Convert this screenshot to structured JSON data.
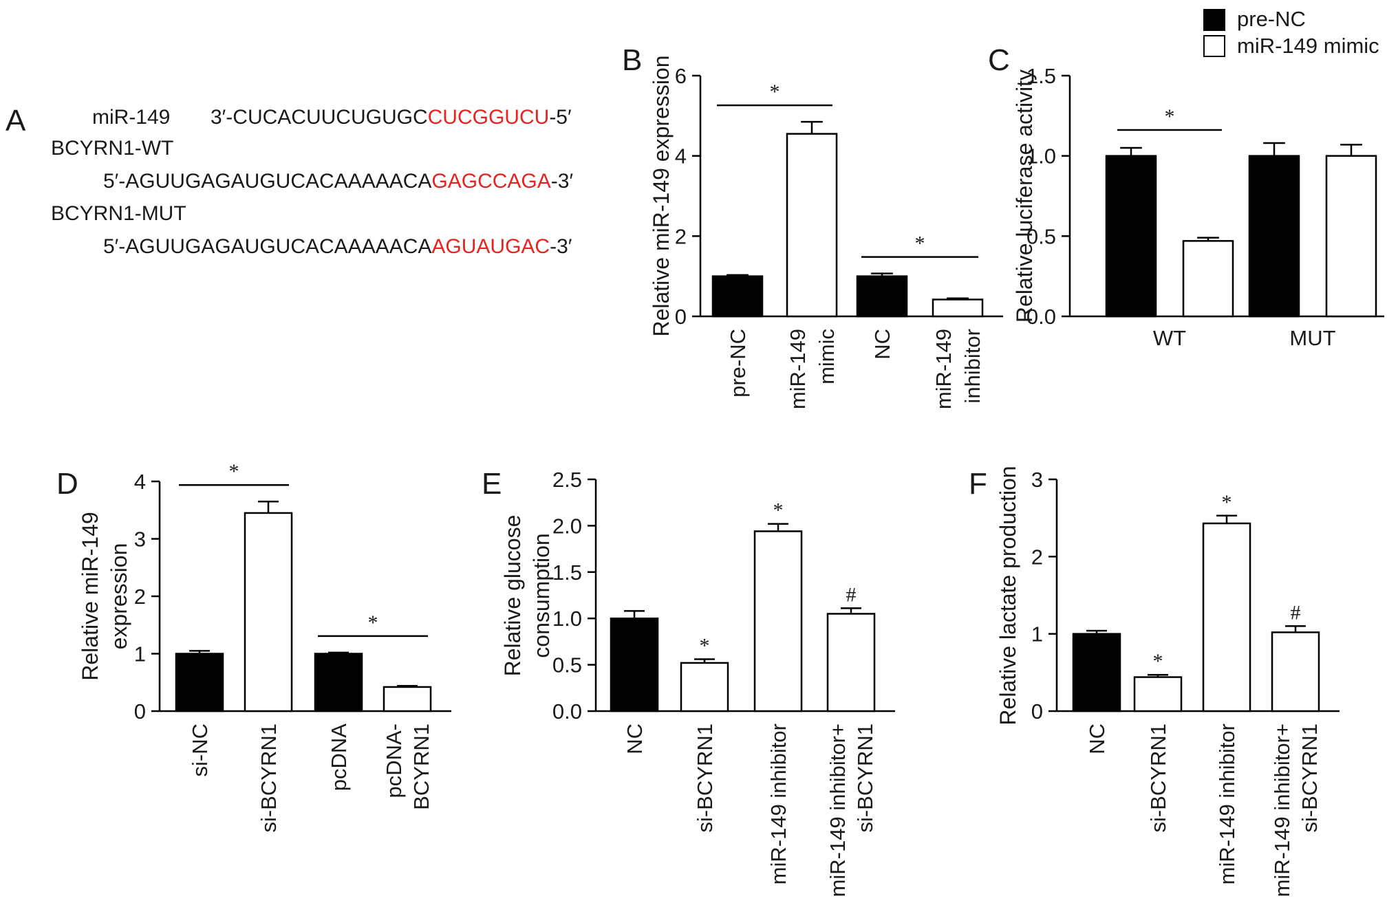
{
  "colors": {
    "black_bar": "#000000",
    "white_bar": "#ffffff",
    "seed": "#e8231f"
  },
  "panelA": {
    "letter": "A",
    "mir_label": "miR-149",
    "mir_prefix": "3′-CUCACUUCUGUGC",
    "mir_seed": "CUCGGUCU",
    "mir_suffix": "-5′",
    "wt_label": "BCYRN1-WT",
    "wt_prefix": "5′-AGUUGAGAUGUCACAAAAACA",
    "wt_seed": "GAGCCAGA",
    "wt_suffix": "-3′",
    "mut_label": "BCYRN1-MUT",
    "mut_prefix": "5′-AGUUGAGAUGUCACAAAAACA",
    "mut_seed": "AGUAUGAC",
    "mut_suffix": "-3′"
  },
  "legend": {
    "items": [
      "pre-NC",
      "miR-149 mimic"
    ]
  },
  "chart_data": [
    {
      "panel": "B",
      "type": "bar",
      "ylabel": "Relative miR-149 expression",
      "ylim": [
        0,
        6
      ],
      "yticks": [
        "0",
        "2",
        "4",
        "6"
      ],
      "categories": [
        [
          "pre-NC"
        ],
        [
          "miR-149",
          "mimic"
        ],
        [
          "NC"
        ],
        [
          "miR-149",
          "inhibitor"
        ]
      ],
      "values": [
        1.0,
        4.55,
        1.0,
        0.42
      ],
      "errors": [
        0.03,
        0.3,
        0.07,
        0.03
      ],
      "fills": [
        "black",
        "white",
        "black",
        "white"
      ],
      "significance": [
        {
          "from": 0,
          "to": 1,
          "label": "*"
        },
        {
          "from": 2,
          "to": 3,
          "label": "*"
        }
      ]
    },
    {
      "panel": "C",
      "type": "bar",
      "ylabel": "Relative luciferase activity",
      "ylim": [
        0,
        1.5
      ],
      "yticks": [
        "0.0",
        "0.5",
        "1.0",
        "1.5"
      ],
      "groups": [
        "WT",
        "MUT"
      ],
      "series": [
        {
          "name": "pre-NC",
          "values": [
            1.0,
            1.0
          ],
          "errors": [
            0.05,
            0.08
          ]
        },
        {
          "name": "miR-149 mimic",
          "values": [
            0.47,
            1.0
          ],
          "errors": [
            0.02,
            0.07
          ]
        }
      ],
      "significance": [
        {
          "group": 0,
          "label": "*"
        }
      ]
    },
    {
      "panel": "D",
      "type": "bar",
      "ylabel": [
        "Relative miR-149",
        "expression"
      ],
      "ylim": [
        0,
        4
      ],
      "yticks": [
        "0",
        "1",
        "2",
        "3",
        "4"
      ],
      "categories": [
        [
          "si-NC"
        ],
        [
          "si-BCYRN1"
        ],
        [
          "pcDNA"
        ],
        [
          "pcDNA-",
          "BCYRN1"
        ]
      ],
      "values": [
        1.0,
        3.45,
        1.0,
        0.42
      ],
      "errors": [
        0.05,
        0.2,
        0.02,
        0.02
      ],
      "fills": [
        "black",
        "white",
        "black",
        "white"
      ],
      "significance": [
        {
          "from": 0,
          "to": 1,
          "label": "*"
        },
        {
          "from": 2,
          "to": 3,
          "label": "*"
        }
      ]
    },
    {
      "panel": "E",
      "type": "bar",
      "ylabel": [
        "Relative glucose",
        "consumption"
      ],
      "ylim": [
        0,
        2.5
      ],
      "yticks": [
        "0.0",
        "0.5",
        "1.0",
        "1.5",
        "2.0",
        "2.5"
      ],
      "categories": [
        [
          "NC"
        ],
        [
          "si-BCYRN1"
        ],
        [
          "miR-149 inhibitor"
        ],
        [
          "miR-149 inhibitor+",
          "si-BCYRN1"
        ]
      ],
      "values": [
        1.0,
        0.52,
        1.94,
        1.05
      ],
      "errors": [
        0.08,
        0.04,
        0.08,
        0.06
      ],
      "fills": [
        "black",
        "white",
        "white",
        "white"
      ],
      "marks": [
        "",
        "*",
        "*",
        "#"
      ]
    },
    {
      "panel": "F",
      "type": "bar",
      "ylabel": "Relative lactate production",
      "ylim": [
        0,
        3
      ],
      "yticks": [
        "0",
        "1",
        "2",
        "3"
      ],
      "categories": [
        [
          "NC"
        ],
        [
          "si-BCYRN1"
        ],
        [
          "miR-149 inhibitor"
        ],
        [
          "miR-149 inhibitor+",
          "si-BCYRN1"
        ]
      ],
      "values": [
        1.0,
        0.44,
        2.43,
        1.02
      ],
      "errors": [
        0.04,
        0.03,
        0.1,
        0.08
      ],
      "fills": [
        "black",
        "white",
        "white",
        "white"
      ],
      "marks": [
        "",
        "*",
        "*",
        "#"
      ]
    }
  ]
}
